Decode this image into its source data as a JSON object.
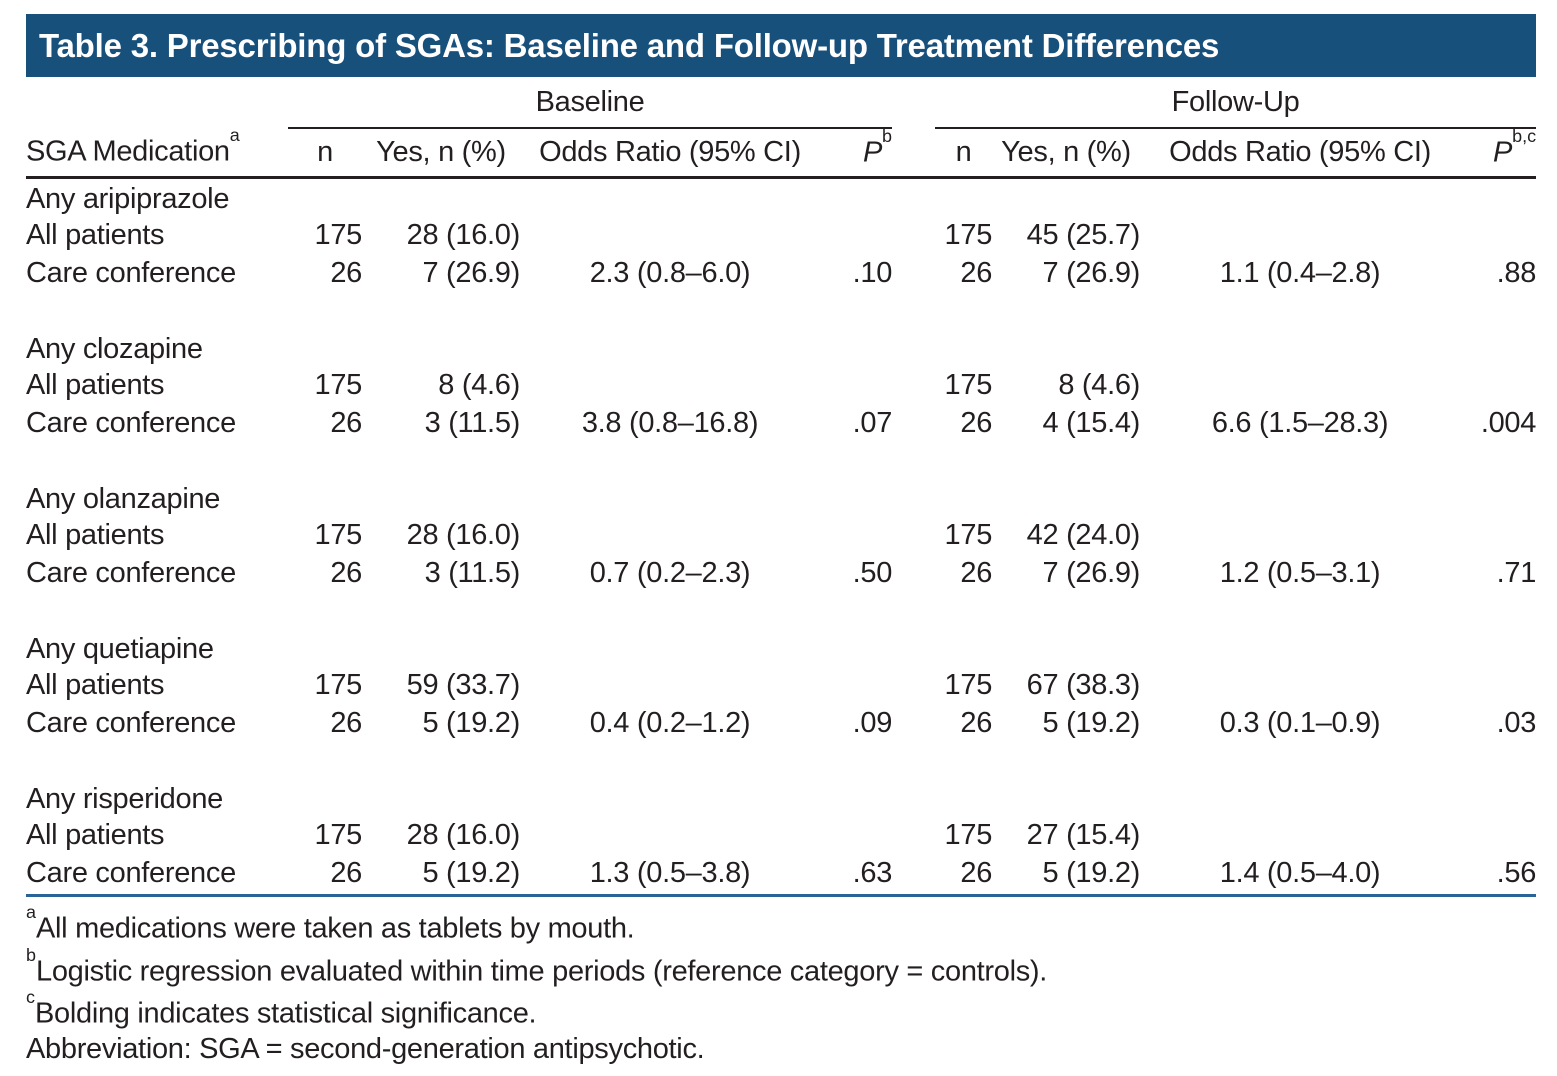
{
  "title_bar": {
    "label": "Table 3. Prescribing of SGAs: Baseline and Follow-up Treatment Differences"
  },
  "colors": {
    "title_bg": "#18507c",
    "rule_blue": "#2a6395",
    "text": "#231f20"
  },
  "table": {
    "stub_header": {
      "text": "SGA Medication",
      "sup": "a"
    },
    "groups": [
      {
        "label": "Baseline",
        "columns": [
          {
            "text": "n",
            "sup": ""
          },
          {
            "text": "Yes, n (%)",
            "sup": ""
          },
          {
            "text": "Odds Ratio (95% CI)",
            "sup": ""
          },
          {
            "text": "P",
            "sup": "b"
          }
        ]
      },
      {
        "label": "Follow-Up",
        "columns": [
          {
            "text": "n",
            "sup": ""
          },
          {
            "text": "Yes, n (%)",
            "sup": ""
          },
          {
            "text": "Odds Ratio (95% CI)",
            "sup": ""
          },
          {
            "text": "P",
            "sup": "b,c"
          }
        ]
      }
    ],
    "sections": [
      {
        "drug": "Any aripiprazole",
        "rows": [
          {
            "label": "All patients",
            "baseline": {
              "n": "175",
              "yes": "28 (16.0)",
              "or": "",
              "p": ""
            },
            "followup": {
              "n": "175",
              "yes": "45 (25.7)",
              "or": "",
              "p": ""
            }
          },
          {
            "label": "Care conference",
            "baseline": {
              "n": "26",
              "yes": "7 (26.9)",
              "or": "2.3 (0.8–6.0)",
              "p": ".10"
            },
            "followup": {
              "n": "26",
              "yes": "7 (26.9)",
              "or": "1.1 (0.4–2.8)",
              "p": ".88"
            }
          }
        ]
      },
      {
        "drug": "Any clozapine",
        "rows": [
          {
            "label": "All patients",
            "baseline": {
              "n": "175",
              "yes": "8 (4.6)",
              "or": "",
              "p": ""
            },
            "followup": {
              "n": "175",
              "yes": "8 (4.6)",
              "or": "",
              "p": ""
            }
          },
          {
            "label": "Care conference",
            "baseline": {
              "n": "26",
              "yes": "3 (11.5)",
              "or": "3.8 (0.8–16.8)",
              "p": ".07"
            },
            "followup": {
              "n": "26",
              "yes": "4 (15.4)",
              "or": "6.6 (1.5–28.3)",
              "p": ".004",
              "p_bold": true
            }
          }
        ]
      },
      {
        "drug": "Any olanzapine",
        "rows": [
          {
            "label": "All patients",
            "baseline": {
              "n": "175",
              "yes": "28 (16.0)",
              "or": "",
              "p": ""
            },
            "followup": {
              "n": "175",
              "yes": "42 (24.0)",
              "or": "",
              "p": ""
            }
          },
          {
            "label": "Care conference",
            "baseline": {
              "n": "26",
              "yes": "3 (11.5)",
              "or": "0.7 (0.2–2.3)",
              "p": ".50"
            },
            "followup": {
              "n": "26",
              "yes": "7 (26.9)",
              "or": "1.2 (0.5–3.1)",
              "p": ".71"
            }
          }
        ]
      },
      {
        "drug": "Any quetiapine",
        "rows": [
          {
            "label": "All patients",
            "baseline": {
              "n": "175",
              "yes": "59 (33.7)",
              "or": "",
              "p": ""
            },
            "followup": {
              "n": "175",
              "yes": "67 (38.3)",
              "or": "",
              "p": ""
            }
          },
          {
            "label": "Care conference",
            "baseline": {
              "n": "26",
              "yes": "5 (19.2)",
              "or": "0.4 (0.2–1.2)",
              "p": ".09"
            },
            "followup": {
              "n": "26",
              "yes": "5 (19.2)",
              "or": "0.3 (0.1–0.9)",
              "p": ".03",
              "p_bold": true
            }
          }
        ]
      },
      {
        "drug": "Any risperidone",
        "rows": [
          {
            "label": "All patients",
            "baseline": {
              "n": "175",
              "yes": "28 (16.0)",
              "or": "",
              "p": ""
            },
            "followup": {
              "n": "175",
              "yes": "27 (15.4)",
              "or": "",
              "p": ""
            }
          },
          {
            "label": "Care conference",
            "baseline": {
              "n": "26",
              "yes": "5 (19.2)",
              "or": "1.3 (0.5–3.8)",
              "p": ".63"
            },
            "followup": {
              "n": "26",
              "yes": "5 (19.2)",
              "or": "1.4 (0.5–4.0)",
              "p": ".56"
            }
          }
        ]
      }
    ]
  },
  "footnotes": [
    {
      "marker": "a",
      "text": "All medications were taken as tablets by mouth."
    },
    {
      "marker": "b",
      "text": "Logistic regression evaluated within time periods (reference category = controls)."
    },
    {
      "marker": "c",
      "text": "Bolding indicates statistical significance."
    },
    {
      "marker": "",
      "text": "Abbreviation: SGA = second-generation antipsychotic."
    }
  ]
}
